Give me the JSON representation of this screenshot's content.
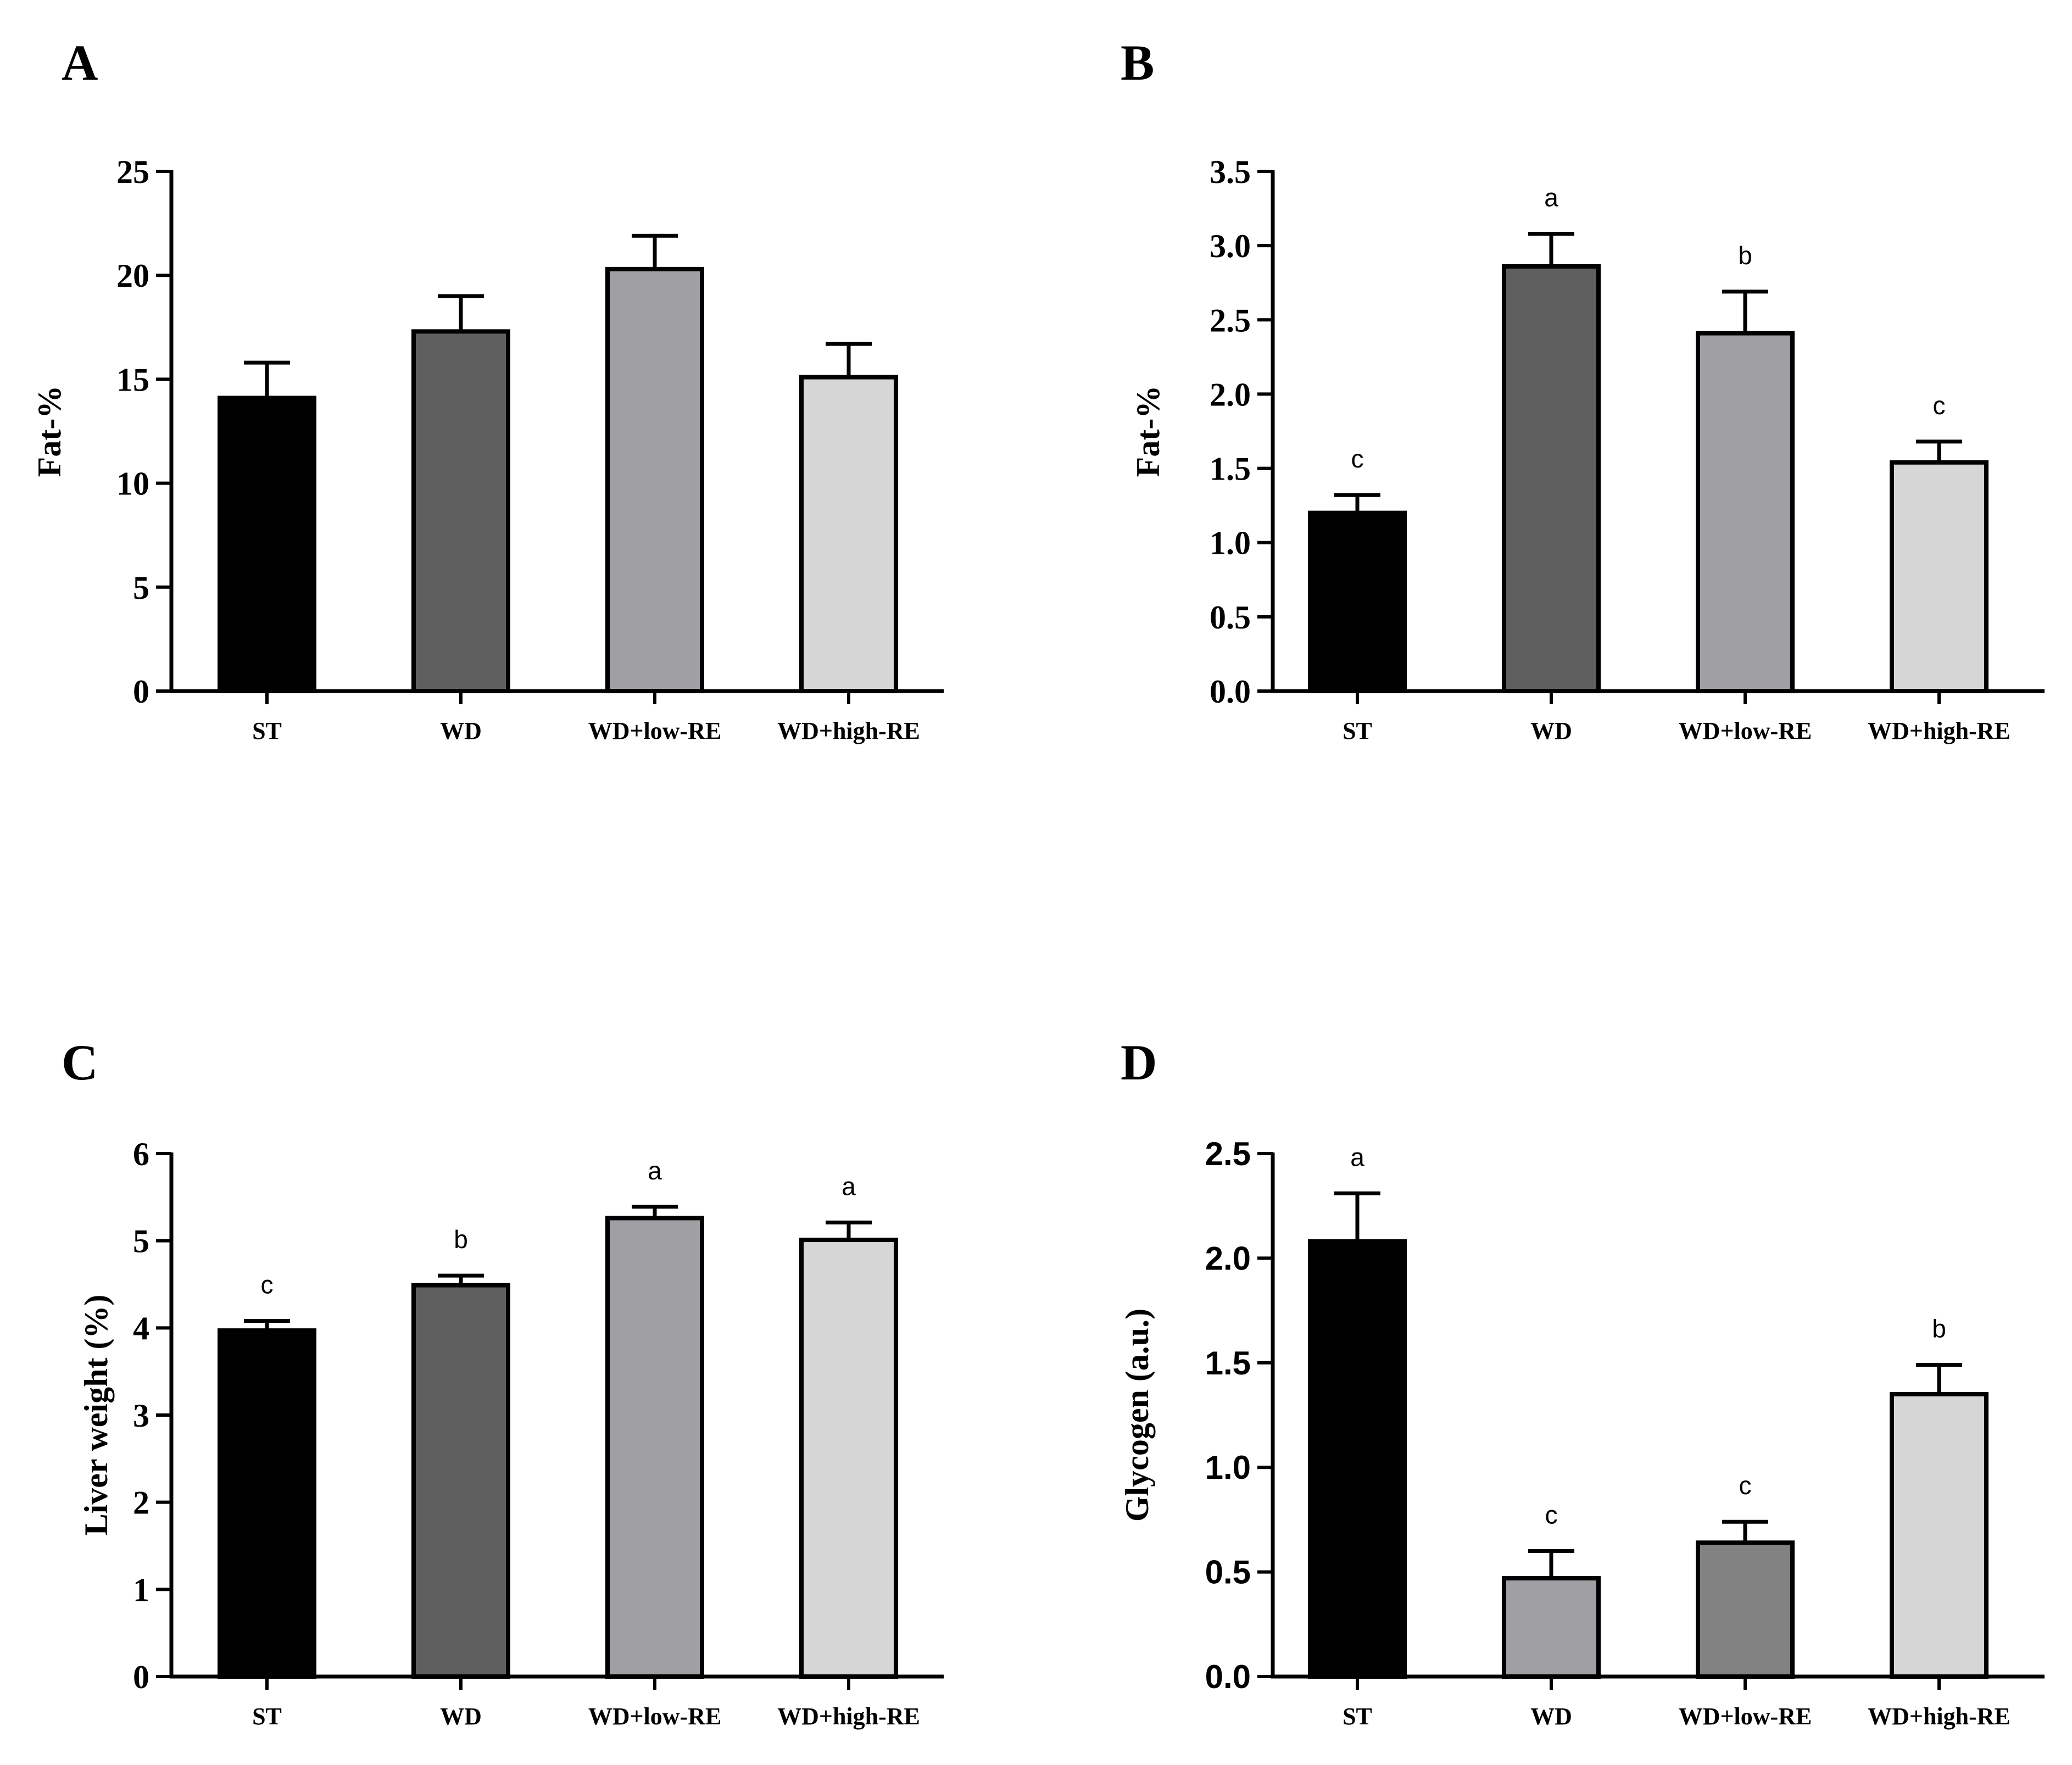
{
  "chart_data": [
    {
      "panel": "A",
      "type": "bar",
      "title": "",
      "xlabel": "",
      "ylabel": "Fat-%",
      "ylim": [
        0,
        25
      ],
      "yticks": [
        "0",
        "5",
        "10",
        "15",
        "20",
        "25"
      ],
      "categories": [
        "ST",
        "WD",
        "WD+low-RE",
        "WD+high-RE"
      ],
      "values": [
        14.1,
        17.3,
        20.3,
        15.1
      ],
      "errors": [
        1.7,
        1.7,
        1.6,
        1.6
      ],
      "significance": [
        "",
        "",
        "",
        ""
      ],
      "colors": [
        "#000000",
        "#5f5f5f",
        "#a0a0a4",
        "#d6d6d6"
      ],
      "tick_font": "serif"
    },
    {
      "panel": "B",
      "type": "bar",
      "title": "",
      "xlabel": "",
      "ylabel": "Fat-%",
      "ylim": [
        0,
        3.5
      ],
      "yticks": [
        "0.0",
        "0.5",
        "1.0",
        "1.5",
        "2.0",
        "2.5",
        "3.0",
        "3.5"
      ],
      "categories": [
        "ST",
        "WD",
        "WD+low-RE",
        "WD+high-RE"
      ],
      "values": [
        1.2,
        2.86,
        2.41,
        1.54
      ],
      "errors": [
        0.12,
        0.22,
        0.28,
        0.14
      ],
      "significance": [
        "c",
        "a",
        "b",
        "c"
      ],
      "colors": [
        "#000000",
        "#5f5f5f",
        "#a0a0a4",
        "#d6d6d6"
      ],
      "tick_font": "serif"
    },
    {
      "panel": "C",
      "type": "bar",
      "title": "",
      "xlabel": "",
      "ylabel": "Liver weight (%)",
      "ylim": [
        0,
        6
      ],
      "yticks": [
        "0",
        "1",
        "2",
        "3",
        "4",
        "5",
        "6"
      ],
      "categories": [
        "ST",
        "WD",
        "WD+low-RE",
        "WD+high-RE"
      ],
      "values": [
        3.97,
        4.49,
        5.26,
        5.01
      ],
      "errors": [
        0.11,
        0.11,
        0.13,
        0.2
      ],
      "significance": [
        "c",
        "b",
        "a",
        "a"
      ],
      "colors": [
        "#000000",
        "#5f5f5f",
        "#a0a0a4",
        "#d6d6d6"
      ],
      "tick_font": "serif"
    },
    {
      "panel": "D",
      "type": "bar",
      "title": "",
      "xlabel": "",
      "ylabel": "Glycogen (a.u.)",
      "ylim": [
        0,
        2.5
      ],
      "yticks": [
        "0.0",
        "0.5",
        "1.0",
        "1.5",
        "2.0",
        "2.5"
      ],
      "categories": [
        "ST",
        "WD",
        "WD+low-RE",
        "WD+high-RE"
      ],
      "values": [
        2.08,
        0.47,
        0.64,
        1.35
      ],
      "errors": [
        0.23,
        0.13,
        0.1,
        0.14
      ],
      "significance": [
        "a",
        "c",
        "c",
        "b"
      ],
      "colors": [
        "#000000",
        "#a0a0a4",
        "#828282",
        "#d6d6d6"
      ],
      "tick_font": "sans"
    }
  ]
}
